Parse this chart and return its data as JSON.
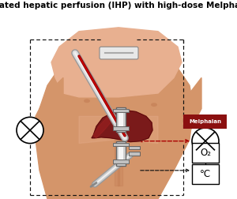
{
  "title": "Isolated hepatic perfusion (IHP) with high-dose Melphalan",
  "title_fontsize": 7.5,
  "bg_color": "#ffffff",
  "skin_light": "#e8b090",
  "skin_mid": "#d4956a",
  "skin_dark": "#c07850",
  "liver_color": "#7a1a1a",
  "liver_edge": "#5a0808",
  "tube_gray": "#aaaaaa",
  "tube_light": "#dddddd",
  "tube_white": "#f5f5f5",
  "blood_red": "#cc0000",
  "dashed_color": "#111111",
  "red_dash_color": "#aa0000",
  "mel_box_color": "#8B1010",
  "melphalan_text": "Melphalan",
  "o2_text": "O₂",
  "celsius_text": "°C",
  "figw": 3.0,
  "figh": 2.52,
  "dpi": 100
}
